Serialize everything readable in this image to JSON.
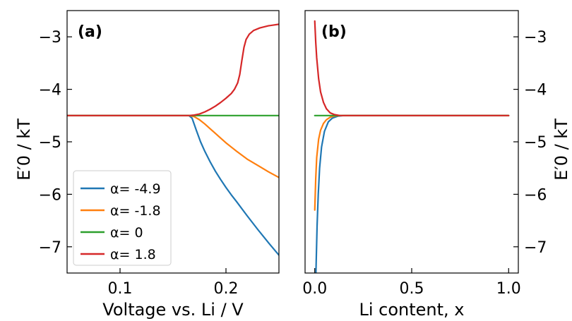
{
  "colors": {
    "series_blue": "#1f77b4",
    "series_orange": "#ff7f0e",
    "series_green": "#2ca02c",
    "series_red": "#d62728"
  },
  "ylabel": "E′0 / kT",
  "chart_data": [
    {
      "type": "line",
      "panel_label": "(a)",
      "xlabel": "Voltage vs. Li / V",
      "ylabel": "E′0 / kT",
      "xlim": [
        0.05,
        0.25
      ],
      "ylim": [
        -7.5,
        -2.5
      ],
      "xticks": [
        {
          "v": 0.1,
          "label": "0.1"
        },
        {
          "v": 0.2,
          "label": "0.2"
        }
      ],
      "yticks": [
        {
          "v": -3,
          "label": "−3"
        },
        {
          "v": -4,
          "label": "−4"
        },
        {
          "v": -5,
          "label": "−5"
        },
        {
          "v": -6,
          "label": "−6"
        },
        {
          "v": -7,
          "label": "−7"
        }
      ],
      "grid": false,
      "legend_position": "lower-left",
      "series": [
        {
          "name": "α= -4.9",
          "color": "#1f77b4",
          "x": [
            0.05,
            0.1,
            0.165,
            0.168,
            0.172,
            0.176,
            0.18,
            0.185,
            0.19,
            0.195,
            0.2,
            0.205,
            0.21,
            0.22,
            0.23,
            0.24,
            0.25
          ],
          "y": [
            -4.5,
            -4.5,
            -4.5,
            -4.55,
            -4.78,
            -5.0,
            -5.18,
            -5.38,
            -5.56,
            -5.72,
            -5.87,
            -6.01,
            -6.14,
            -6.41,
            -6.67,
            -6.92,
            -7.16
          ]
        },
        {
          "name": "α= -1.8",
          "color": "#ff7f0e",
          "x": [
            0.05,
            0.1,
            0.165,
            0.17,
            0.175,
            0.18,
            0.185,
            0.19,
            0.195,
            0.2,
            0.205,
            0.21,
            0.22,
            0.23,
            0.24,
            0.25
          ],
          "y": [
            -4.5,
            -4.5,
            -4.5,
            -4.52,
            -4.58,
            -4.66,
            -4.75,
            -4.84,
            -4.93,
            -5.02,
            -5.1,
            -5.18,
            -5.33,
            -5.45,
            -5.57,
            -5.68
          ]
        },
        {
          "name": "α= 0",
          "color": "#2ca02c",
          "x": [
            0.05,
            0.25
          ],
          "y": [
            -4.5,
            -4.5
          ]
        },
        {
          "name": "α= 1.8",
          "color": "#d62728",
          "x": [
            0.05,
            0.1,
            0.165,
            0.17,
            0.175,
            0.18,
            0.185,
            0.19,
            0.195,
            0.2,
            0.205,
            0.208,
            0.211,
            0.213,
            0.215,
            0.217,
            0.219,
            0.222,
            0.226,
            0.232,
            0.24,
            0.25
          ],
          "y": [
            -4.5,
            -4.5,
            -4.5,
            -4.49,
            -4.47,
            -4.43,
            -4.38,
            -4.32,
            -4.25,
            -4.17,
            -4.08,
            -4.0,
            -3.88,
            -3.72,
            -3.45,
            -3.2,
            -3.05,
            -2.95,
            -2.88,
            -2.83,
            -2.79,
            -2.76
          ]
        }
      ]
    },
    {
      "type": "line",
      "panel_label": "(b)",
      "xlabel": "Li content, x",
      "ylabel": "E′0 / kT",
      "xlim": [
        -0.05,
        1.05
      ],
      "ylim": [
        -7.5,
        -2.5
      ],
      "xticks": [
        {
          "v": 0.0,
          "label": "0.0"
        },
        {
          "v": 0.5,
          "label": "0.5"
        },
        {
          "v": 1.0,
          "label": "1.0"
        }
      ],
      "yticks": [
        {
          "v": -3,
          "label": "−3"
        },
        {
          "v": -4,
          "label": "−4"
        },
        {
          "v": -5,
          "label": "−5"
        },
        {
          "v": -6,
          "label": "−6"
        },
        {
          "v": -7,
          "label": "−7"
        }
      ],
      "grid": false,
      "series": [
        {
          "name": "α= -4.9",
          "color": "#1f77b4",
          "x": [
            0.006,
            0.008,
            0.012,
            0.018,
            0.025,
            0.035,
            0.05,
            0.07,
            0.09,
            0.12,
            0.15,
            0.2,
            1.0
          ],
          "y": [
            -7.5,
            -7.2,
            -6.6,
            -6.0,
            -5.5,
            -5.1,
            -4.8,
            -4.62,
            -4.55,
            -4.51,
            -4.5,
            -4.5,
            -4.5
          ]
        },
        {
          "name": "α= -1.8",
          "color": "#ff7f0e",
          "x": [
            0.0,
            0.005,
            0.01,
            0.02,
            0.03,
            0.045,
            0.06,
            0.08,
            0.1,
            0.13,
            0.17,
            1.0
          ],
          "y": [
            -6.3,
            -5.7,
            -5.3,
            -4.95,
            -4.78,
            -4.65,
            -4.58,
            -4.53,
            -4.51,
            -4.5,
            -4.5,
            -4.5
          ]
        },
        {
          "name": "α= 0",
          "color": "#2ca02c",
          "x": [
            0.0,
            1.0
          ],
          "y": [
            -4.5,
            -4.5
          ]
        },
        {
          "name": "α= 1.8",
          "color": "#d62728",
          "x": [
            0.0,
            0.005,
            0.01,
            0.02,
            0.03,
            0.045,
            0.06,
            0.08,
            0.1,
            0.13,
            0.17,
            1.0
          ],
          "y": [
            -2.7,
            -3.1,
            -3.4,
            -3.8,
            -4.05,
            -4.25,
            -4.37,
            -4.45,
            -4.48,
            -4.5,
            -4.5,
            -4.5
          ]
        }
      ]
    }
  ]
}
